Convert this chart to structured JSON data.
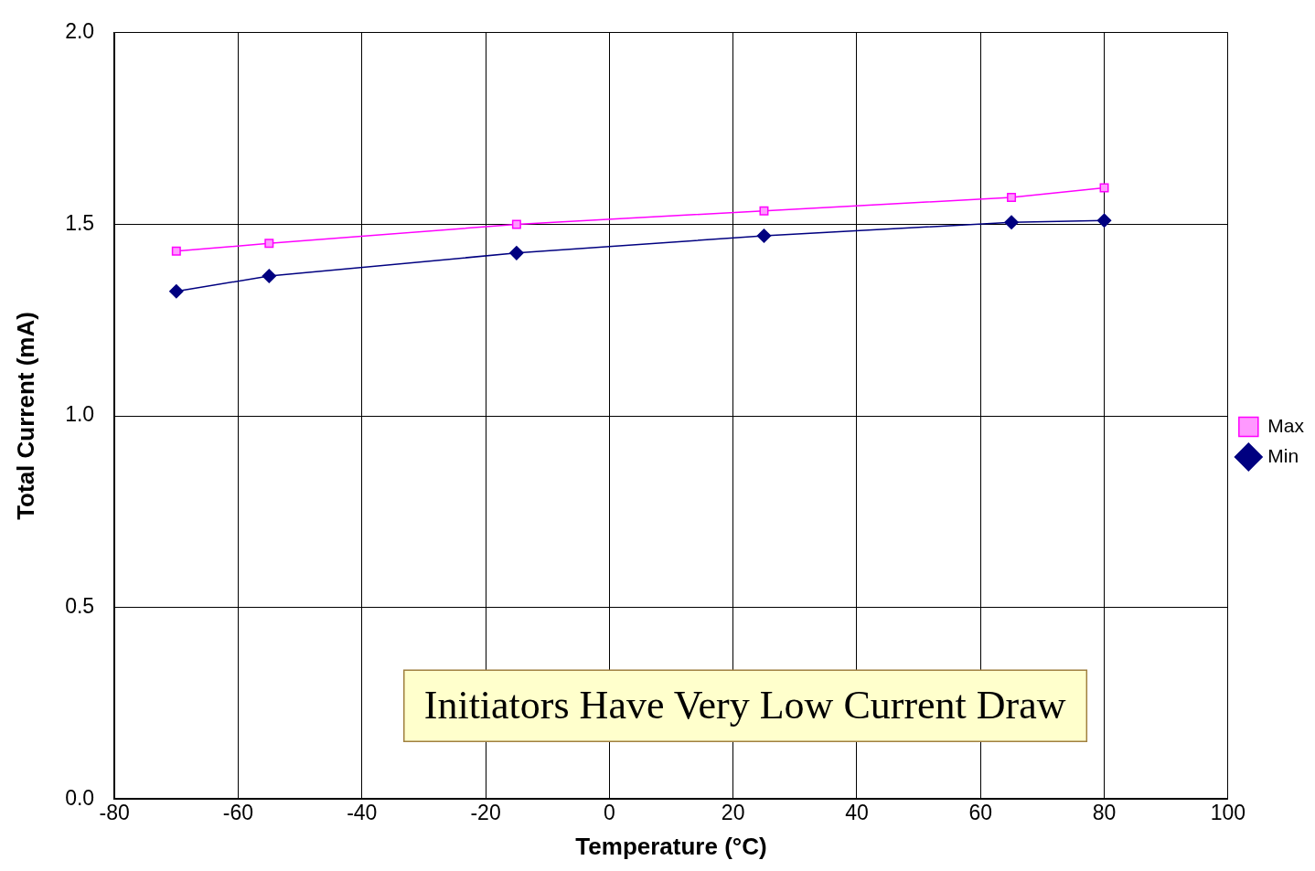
{
  "chart_data": {
    "type": "line",
    "xlabel": "Temperature (°C)",
    "ylabel": "Total Current (mA)",
    "x": [
      -70,
      -55,
      -15,
      25,
      65,
      80
    ],
    "series": [
      {
        "name": "Max",
        "color": "#ff00ff",
        "marker": "square",
        "values": [
          1.43,
          1.45,
          1.5,
          1.535,
          1.57,
          1.595
        ]
      },
      {
        "name": "Min",
        "color": "#000080",
        "marker": "diamond",
        "values": [
          1.325,
          1.365,
          1.425,
          1.47,
          1.505,
          1.51
        ]
      }
    ],
    "xlim": [
      -80,
      100
    ],
    "xticks": [
      -80,
      -60,
      -40,
      -20,
      0,
      20,
      40,
      60,
      80,
      100
    ],
    "ylim": [
      0,
      2
    ],
    "yticks": [
      {
        "value": 0,
        "label": "0.0"
      },
      {
        "value": 0.5,
        "label": "0.5"
      },
      {
        "value": 1,
        "label": "1.0"
      },
      {
        "value": 1.5,
        "label": "1.5"
      },
      {
        "value": 2,
        "label": "2.0"
      }
    ],
    "grid": true,
    "legend": "right",
    "line_style": "solid",
    "annotations": [
      "Initiators Have Very Low Current Draw"
    ]
  }
}
